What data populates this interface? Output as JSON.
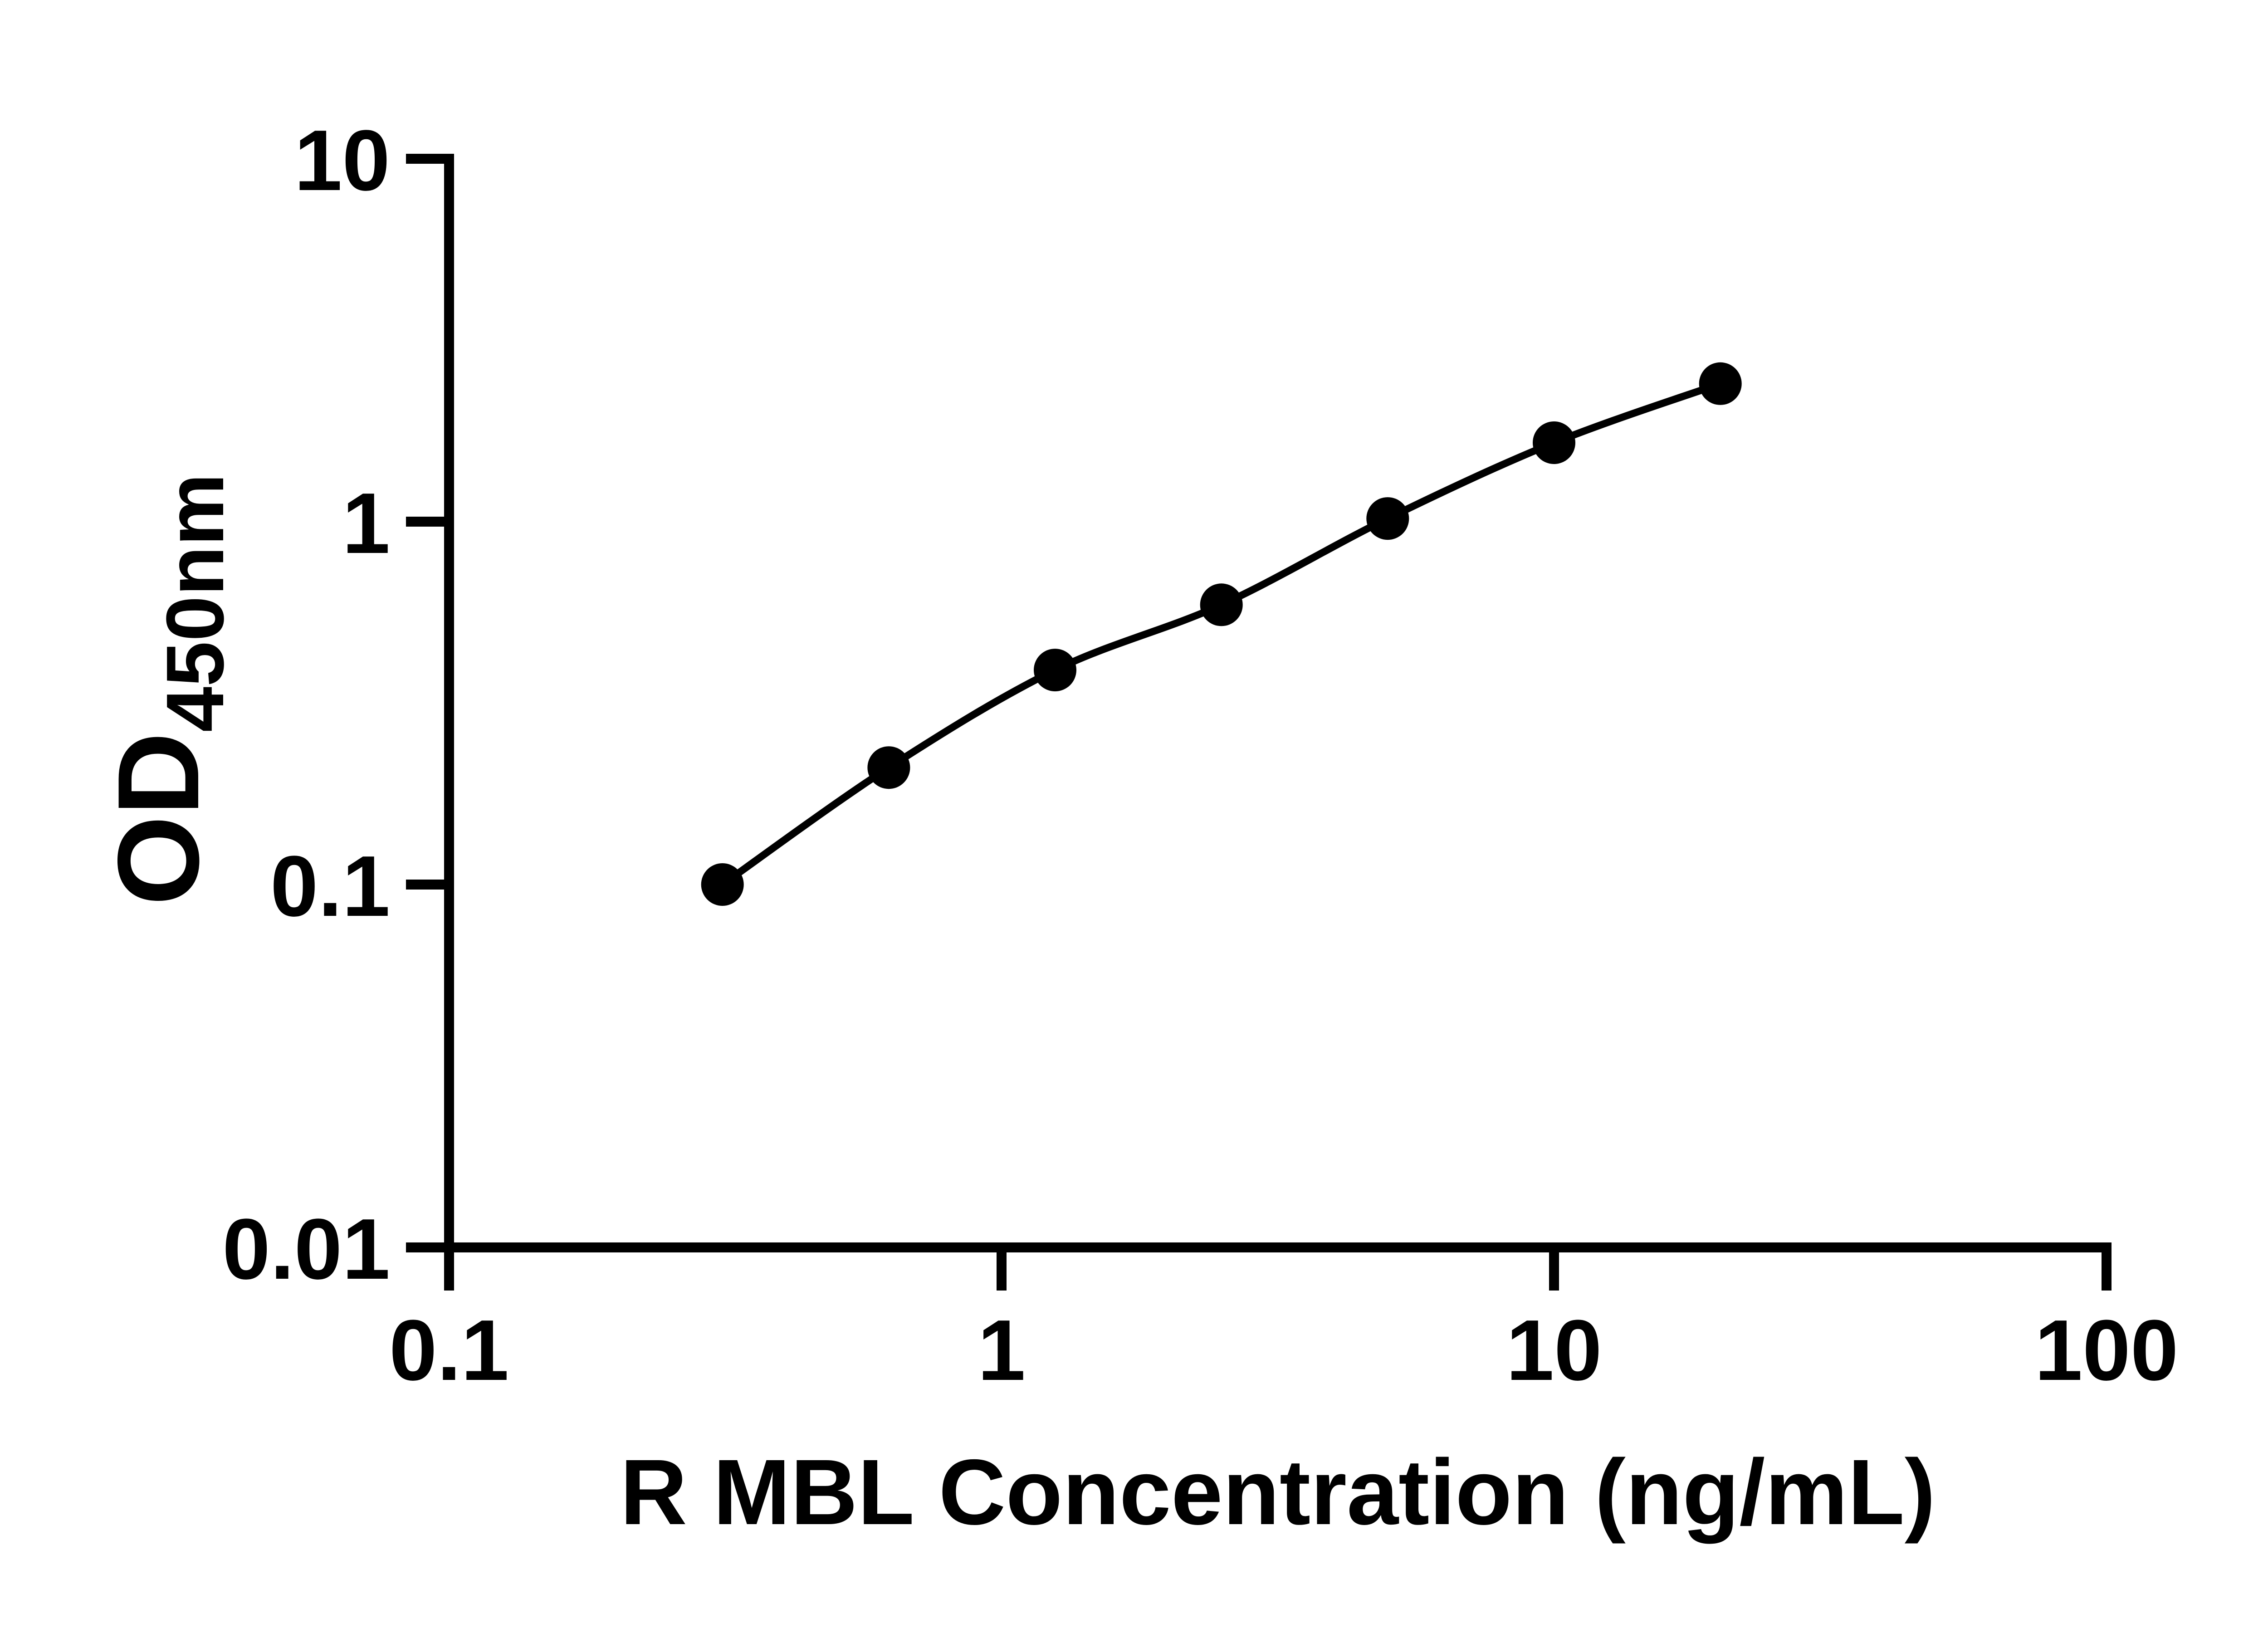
{
  "figure": {
    "background_color": "#ffffff",
    "foreground_color": "#000000"
  },
  "chart_data": {
    "type": "scatter",
    "title": "",
    "xlabel": "R MBL Concentration (ng/mL)",
    "ylabel_main": "OD",
    "ylabel_sub": "450nm",
    "x": [
      0.3125,
      0.625,
      1.25,
      2.5,
      5,
      10,
      20
    ],
    "y": [
      0.1,
      0.21,
      0.39,
      0.59,
      1.02,
      1.65,
      2.4
    ],
    "x_scale": "log",
    "y_scale": "log",
    "xlim": [
      0.1,
      100
    ],
    "ylim": [
      0.01,
      10
    ],
    "x_ticks": [
      {
        "label": "0.1",
        "value": 0.1
      },
      {
        "label": "1",
        "value": 1
      },
      {
        "label": "10",
        "value": 10
      },
      {
        "label": "100",
        "value": 100
      }
    ],
    "y_ticks": [
      {
        "label": "10",
        "value": 10
      },
      {
        "label": "1",
        "value": 1
      },
      {
        "label": "0.1",
        "value": 0.1
      },
      {
        "label": "0.01",
        "value": 0.01
      }
    ],
    "grid": false,
    "legend_position": "none",
    "marker_color": "#000000",
    "line_color": "#000000",
    "axis_color": "#000000"
  }
}
